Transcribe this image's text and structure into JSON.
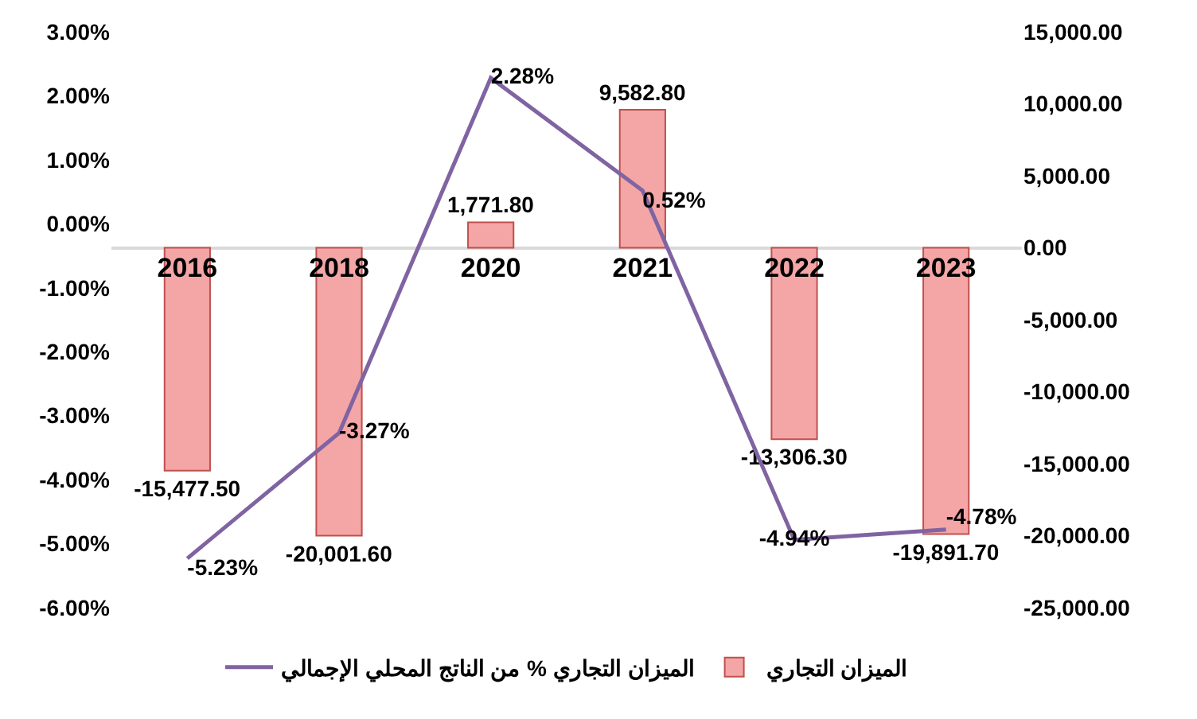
{
  "chart_data": {
    "type": "bar",
    "categories": [
      "2016",
      "2018",
      "2020",
      "2021",
      "2022",
      "2023"
    ],
    "series": [
      {
        "name": "الميزان التجاري",
        "axis": "y2",
        "color": "#f4a6a6",
        "values": [
          -15477.5,
          -20001.6,
          1771.8,
          9582.8,
          -13306.3,
          -19891.7
        ],
        "value_labels": [
          "-15,477.50",
          "-20,001.60",
          "1,771.80",
          "9,582.80",
          "-13,306.30",
          "-19,891.70"
        ]
      },
      {
        "name": "الميزان التجاري % من الناتج المحلي الإجمالي",
        "type": "line",
        "axis": "y",
        "color": "#8064a2",
        "values": [
          -5.23,
          -3.27,
          2.28,
          0.52,
          -4.94,
          -4.78
        ],
        "value_labels": [
          "-5.23%",
          "-3.27%",
          "2.28%",
          "0.52%",
          "-4.94%",
          "-4.78%"
        ]
      }
    ],
    "ylim": [
      -6,
      3
    ],
    "yticks": [
      {
        "value": -6,
        "label": "-6.00%"
      },
      {
        "value": -5,
        "label": "-5.00%"
      },
      {
        "value": -4,
        "label": "-4.00%"
      },
      {
        "value": -3,
        "label": "-3.00%"
      },
      {
        "value": -2,
        "label": "-2.00%"
      },
      {
        "value": -1,
        "label": "-1.00%"
      },
      {
        "value": 0,
        "label": "0.00%"
      },
      {
        "value": 1,
        "label": "1.00%"
      },
      {
        "value": 2,
        "label": "2.00%"
      },
      {
        "value": 3,
        "label": "3.00%"
      }
    ],
    "y2lim": [
      -25000,
      15000
    ],
    "y2ticks": [
      {
        "value": -25000,
        "label": "-25,000.00"
      },
      {
        "value": -20000,
        "label": "-20,000.00"
      },
      {
        "value": -15000,
        "label": "-15,000.00"
      },
      {
        "value": -10000,
        "label": "-10,000.00"
      },
      {
        "value": -5000,
        "label": "-5,000.00"
      },
      {
        "value": 0,
        "label": "0.00"
      },
      {
        "value": 5000,
        "label": "5,000.00"
      },
      {
        "value": 10000,
        "label": "10,000.00"
      },
      {
        "value": 15000,
        "label": "15,000.00"
      }
    ],
    "legend": "bottom",
    "marker": "none",
    "line_style": "solid"
  }
}
